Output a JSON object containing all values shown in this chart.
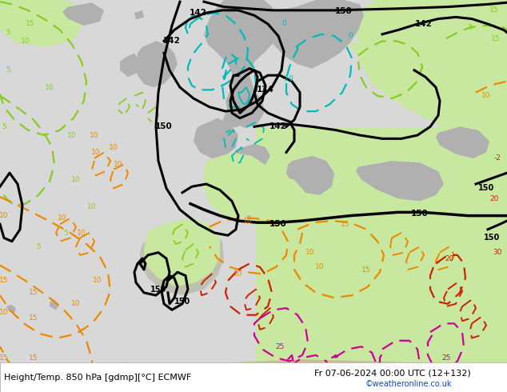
{
  "title_left": "Height/Temp. 850 hPa [gdmp][°C] ECMWF",
  "title_right": "Fr 07-06-2024 00:00 UTC (12+132)",
  "credit": "©weatheronline.co.uk",
  "ocean_color": "#d8d8d8",
  "land_color": "#b0b0b0",
  "green_color": "#c8e8a0",
  "figsize": [
    6.34,
    4.9
  ],
  "dpi": 100,
  "black_lw": 2.2,
  "temp_lw": 1.6,
  "cyan_color": "#00bbbb",
  "lime_color": "#88cc22",
  "orange_color": "#ee8800",
  "red_color": "#cc2200",
  "magenta_color": "#cc0099"
}
